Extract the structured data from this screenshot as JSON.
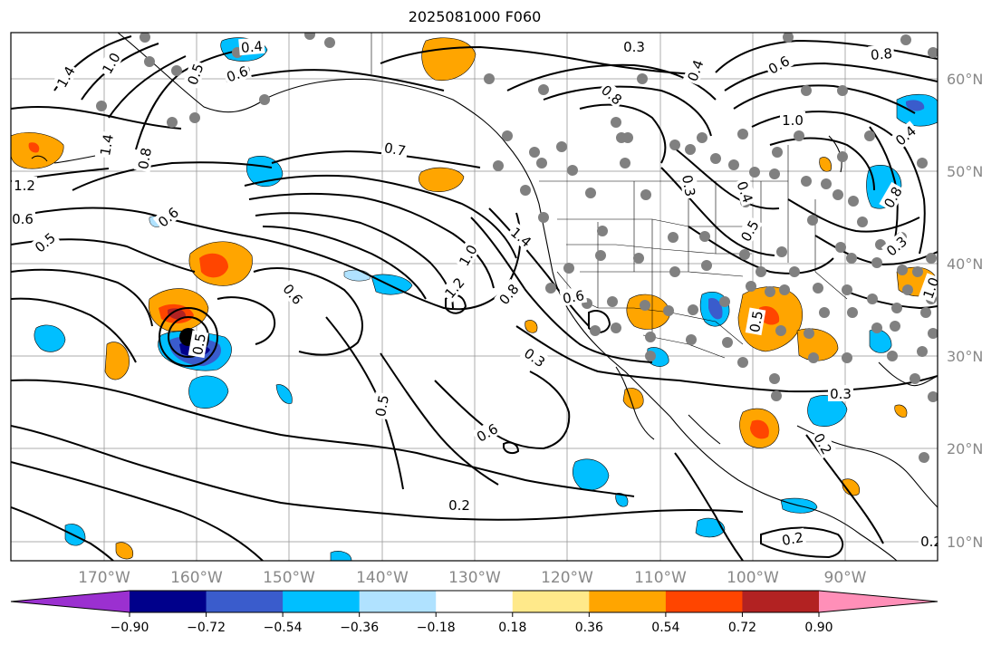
{
  "title": "2025081000 F060",
  "map": {
    "lat_labels": [
      "60°N",
      "50°N",
      "40°N",
      "30°N",
      "20°N",
      "10°N"
    ],
    "lon_labels": [
      "170°W",
      "160°W",
      "150°W",
      "140°W",
      "130°W",
      "120°W",
      "110°W",
      "100°W",
      "90°W"
    ],
    "contour_labels": [
      {
        "text": "0.4"
      },
      {
        "text": "0.3"
      },
      {
        "text": "0.8"
      },
      {
        "text": "1.4"
      },
      {
        "text": "1.0"
      },
      {
        "text": "0.5"
      },
      {
        "text": "0.6"
      },
      {
        "text": "0.6"
      },
      {
        "text": "1.0"
      },
      {
        "text": "0.8"
      },
      {
        "text": "1.4"
      },
      {
        "text": "0.8"
      },
      {
        "text": "1.2"
      },
      {
        "text": "0.6"
      },
      {
        "text": "0.5"
      },
      {
        "text": "0.7"
      },
      {
        "text": "0.6"
      },
      {
        "text": "1.0"
      },
      {
        "text": "1.2"
      },
      {
        "text": "0.8"
      },
      {
        "text": "1.4"
      },
      {
        "text": "0.6"
      },
      {
        "text": "0.3"
      },
      {
        "text": "0.5"
      },
      {
        "text": "0.6"
      },
      {
        "text": "0.2"
      },
      {
        "text": "0.3"
      },
      {
        "text": "0.4"
      },
      {
        "text": "0.5"
      },
      {
        "text": "0.3"
      },
      {
        "text": "0.2"
      },
      {
        "text": "0.2"
      },
      {
        "text": "0.3"
      },
      {
        "text": "0.4"
      },
      {
        "text": "1.0"
      },
      {
        "text": "0.6"
      },
      {
        "text": "0.8"
      },
      {
        "text": "0.4"
      },
      {
        "text": "0.3"
      },
      {
        "text": "0.2"
      },
      {
        "text": "0.5"
      },
      {
        "text": "0.8"
      }
    ]
  },
  "colorbar": {
    "colors": [
      "#9b30d0",
      "#00008b",
      "#3a5ccc",
      "#00bfff",
      "#b0e2ff",
      "#ffffff",
      "#ffe98a",
      "#ffa500",
      "#ff4500",
      "#b22222",
      "#ff8fb8"
    ],
    "tick_labels": [
      "−0.90",
      "−0.72",
      "−0.54",
      "−0.36",
      "−0.18",
      "0.18",
      "0.36",
      "0.54",
      "0.72",
      "0.90"
    ]
  },
  "colors": {
    "positive_fill": "#ffa500",
    "positive_strong": "#ff4500",
    "negative_fill": "#00bfff",
    "negative_strong": "#3a5ccc",
    "station_dot": "#808080",
    "contour": "#000000",
    "grid": "#999999",
    "label": "#888888"
  }
}
